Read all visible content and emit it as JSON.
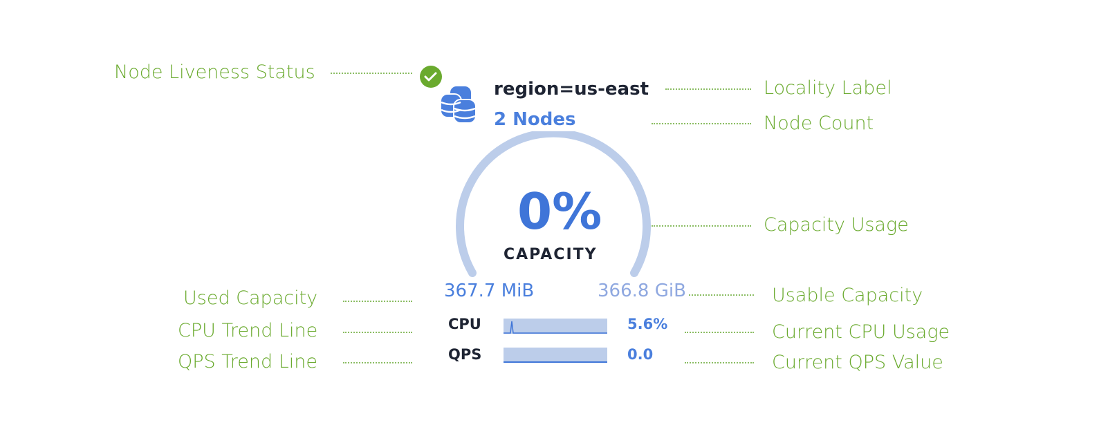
{
  "colors": {
    "annotation": "#6aaa2e",
    "accent": "#4a7fdd",
    "gauge_track": "#bccdea",
    "liveness": "#6aaa2e"
  },
  "node": {
    "liveness_icon": "check-circle-icon",
    "node_icon": "database-icon",
    "locality": "region=us-east",
    "node_count": "2 Nodes"
  },
  "capacity": {
    "percent": "0%",
    "label": "CAPACITY",
    "used": "367.7 MiB",
    "usable": "366.8 GiB",
    "usage_fraction": 0
  },
  "metrics": [
    {
      "label": "CPU",
      "value": "5.6%"
    },
    {
      "label": "QPS",
      "value": "0.0"
    }
  ],
  "annotations": {
    "liveness": "Node Liveness Status",
    "locality": "Locality Label",
    "node_count": "Node Count",
    "capacity_usage": "Capacity Usage",
    "used_capacity": "Used Capacity",
    "usable_capacity": "Usable Capacity",
    "cpu_trend": "CPU Trend Line",
    "current_cpu": "Current CPU Usage",
    "qps_trend": "QPS Trend Line",
    "current_qps": "Current QPS Value"
  }
}
